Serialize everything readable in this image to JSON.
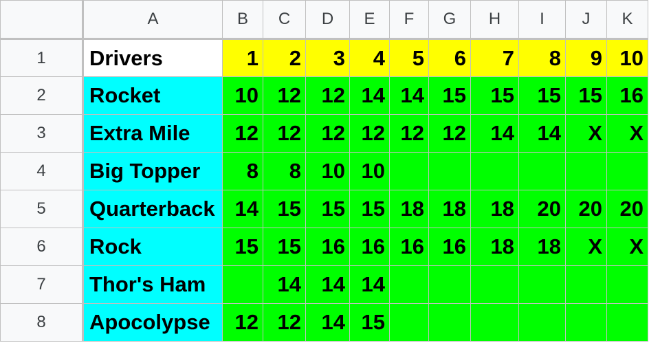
{
  "columns": [
    "A",
    "B",
    "C",
    "D",
    "E",
    "F",
    "G",
    "H",
    "I",
    "J",
    "K"
  ],
  "colors": {
    "header_yellow": "#ffff00",
    "name_cyan": "#00ffff",
    "data_green": "#00ff00",
    "header_white": "#ffffff"
  },
  "rows": [
    {
      "num": "1",
      "cells": [
        "Drivers",
        "1",
        "2",
        "3",
        "4",
        "5",
        "6",
        "7",
        "8",
        "9",
        "10"
      ]
    },
    {
      "num": "2",
      "cells": [
        "Rocket",
        "10",
        "12",
        "12",
        "14",
        "14",
        "15",
        "15",
        "15",
        "15",
        "16"
      ]
    },
    {
      "num": "3",
      "cells": [
        "Extra Mile",
        "12",
        "12",
        "12",
        "12",
        "12",
        "12",
        "14",
        "14",
        "X",
        "X"
      ]
    },
    {
      "num": "4",
      "cells": [
        "Big Topper",
        "8",
        "8",
        "10",
        "10",
        "",
        "",
        "",
        "",
        "",
        ""
      ]
    },
    {
      "num": "5",
      "cells": [
        "Quarterback",
        "14",
        "15",
        "15",
        "15",
        "18",
        "18",
        "18",
        "20",
        "20",
        "20"
      ]
    },
    {
      "num": "6",
      "cells": [
        "Rock",
        "15",
        "15",
        "16",
        "16",
        "16",
        "16",
        "18",
        "18",
        "X",
        "X"
      ]
    },
    {
      "num": "7",
      "cells": [
        "Thor's Ham",
        "",
        "14",
        "14",
        "14",
        "",
        "",
        "",
        "",
        "",
        ""
      ]
    },
    {
      "num": "8",
      "cells": [
        "Apocolypse",
        "12",
        "12",
        "14",
        "15",
        "",
        "",
        "",
        "",
        "",
        ""
      ]
    }
  ]
}
